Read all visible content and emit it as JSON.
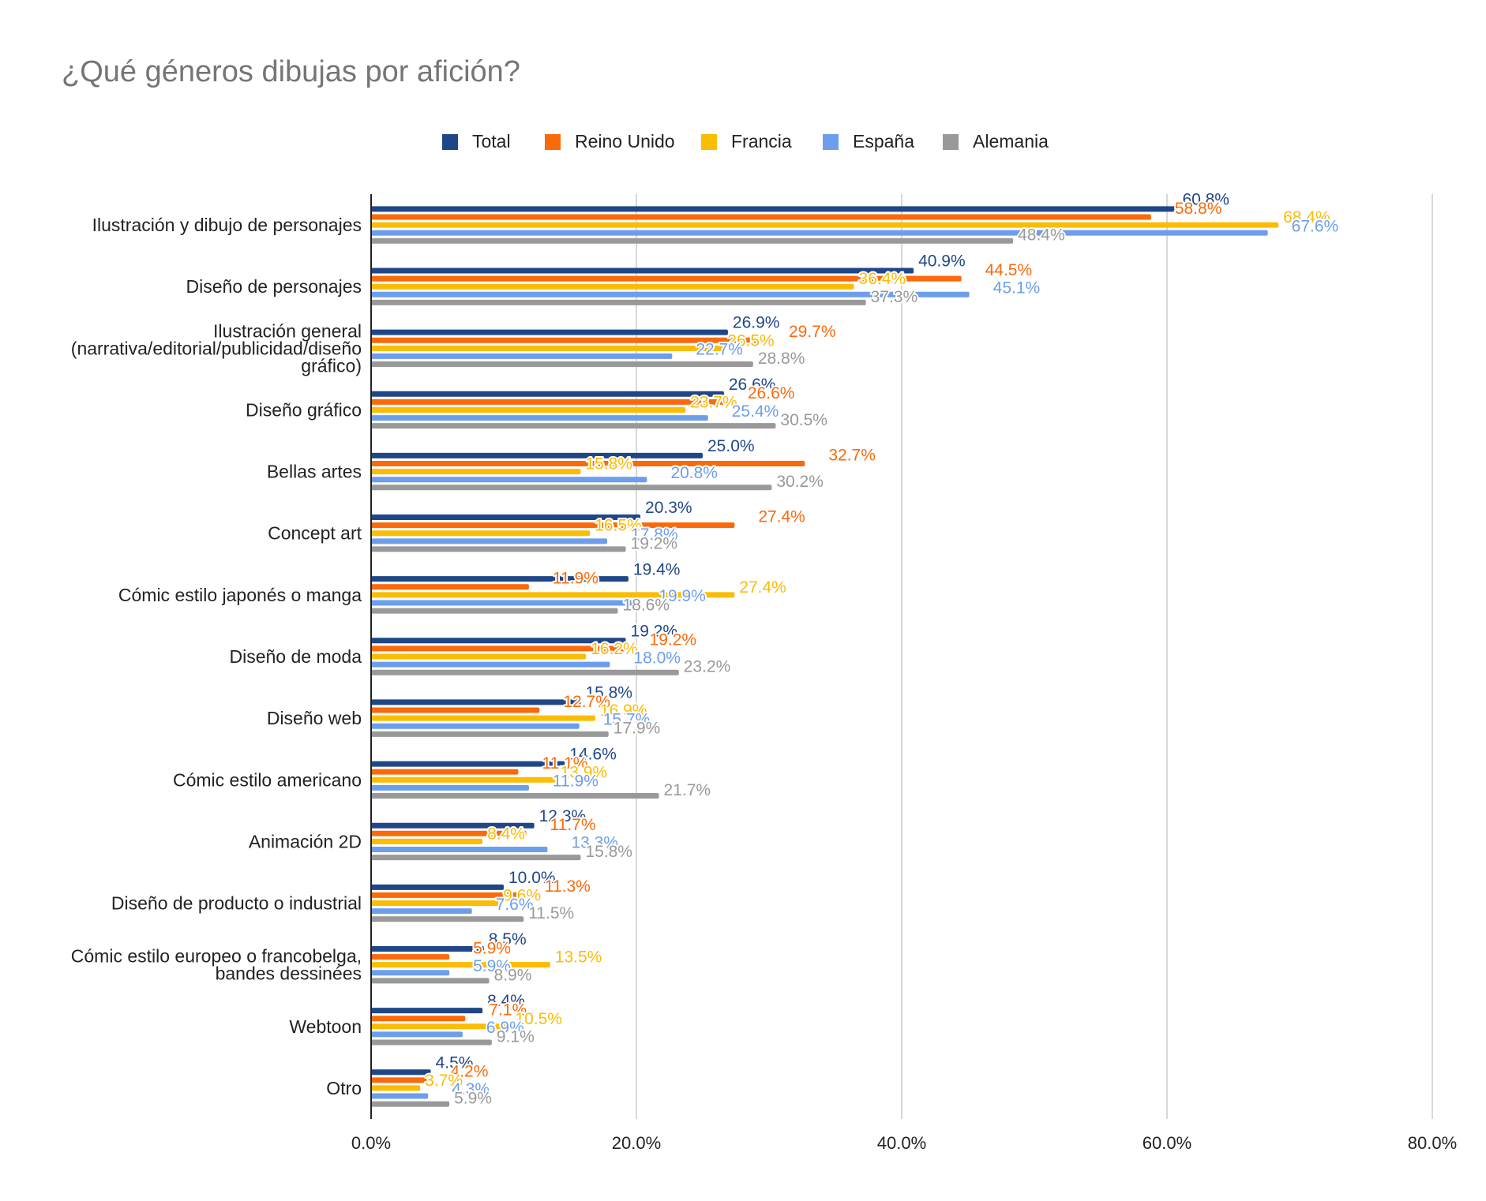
{
  "chart_data": {
    "type": "bar",
    "orientation": "horizontal",
    "title": "¿Qué géneros dibujas por afición?",
    "xlabel": "",
    "ylabel": "",
    "xlim": [
      0,
      80
    ],
    "x_ticks": [
      "0.0%",
      "20.0%",
      "40.0%",
      "60.0%",
      "80.0%"
    ],
    "grid": true,
    "legend_position": "top",
    "categories": [
      [
        "Ilustración y dibujo de personajes"
      ],
      [
        "Diseño de personajes"
      ],
      [
        "Ilustración general",
        "(narrativa/editorial/publicidad/diseño",
        "gráfico)"
      ],
      [
        "Diseño gráfico"
      ],
      [
        "Bellas artes"
      ],
      [
        "Concept art"
      ],
      [
        "Cómic estilo japonés o manga"
      ],
      [
        "Diseño de moda"
      ],
      [
        "Diseño web"
      ],
      [
        "Cómic estilo americano"
      ],
      [
        "Animación 2D"
      ],
      [
        "Diseño de producto o industrial"
      ],
      [
        "Cómic estilo europeo o francobelga,",
        "bandes dessinées"
      ],
      [
        "Webtoon"
      ],
      [
        "Otro"
      ]
    ],
    "series": [
      {
        "name": "Total",
        "color": "#1f4788",
        "values": [
          60.8,
          40.9,
          26.9,
          26.6,
          25.0,
          20.3,
          19.4,
          19.2,
          15.8,
          14.6,
          12.3,
          10.0,
          8.5,
          8.4,
          4.5
        ]
      },
      {
        "name": "Reino Unido",
        "color": "#fa6a0a",
        "values": [
          58.8,
          44.5,
          29.7,
          26.6,
          32.7,
          27.4,
          11.9,
          19.2,
          12.7,
          11.1,
          11.7,
          11.3,
          5.9,
          7.1,
          4.2
        ]
      },
      {
        "name": "Francia",
        "color": "#fbbc04",
        "values": [
          68.4,
          36.4,
          26.5,
          23.7,
          15.8,
          16.5,
          27.4,
          16.2,
          16.9,
          13.9,
          8.4,
          9.6,
          13.5,
          10.5,
          3.7
        ]
      },
      {
        "name": "España",
        "color": "#6d9eeb",
        "values": [
          67.6,
          45.1,
          22.7,
          25.4,
          20.8,
          17.8,
          19.9,
          18.0,
          15.7,
          11.9,
          13.3,
          7.6,
          5.9,
          6.9,
          4.3
        ]
      },
      {
        "name": "Alemania",
        "color": "#999999",
        "values": [
          48.4,
          37.3,
          28.8,
          30.5,
          30.2,
          19.2,
          18.6,
          23.2,
          17.9,
          21.7,
          15.8,
          11.5,
          8.9,
          9.1,
          5.9
        ]
      }
    ]
  }
}
